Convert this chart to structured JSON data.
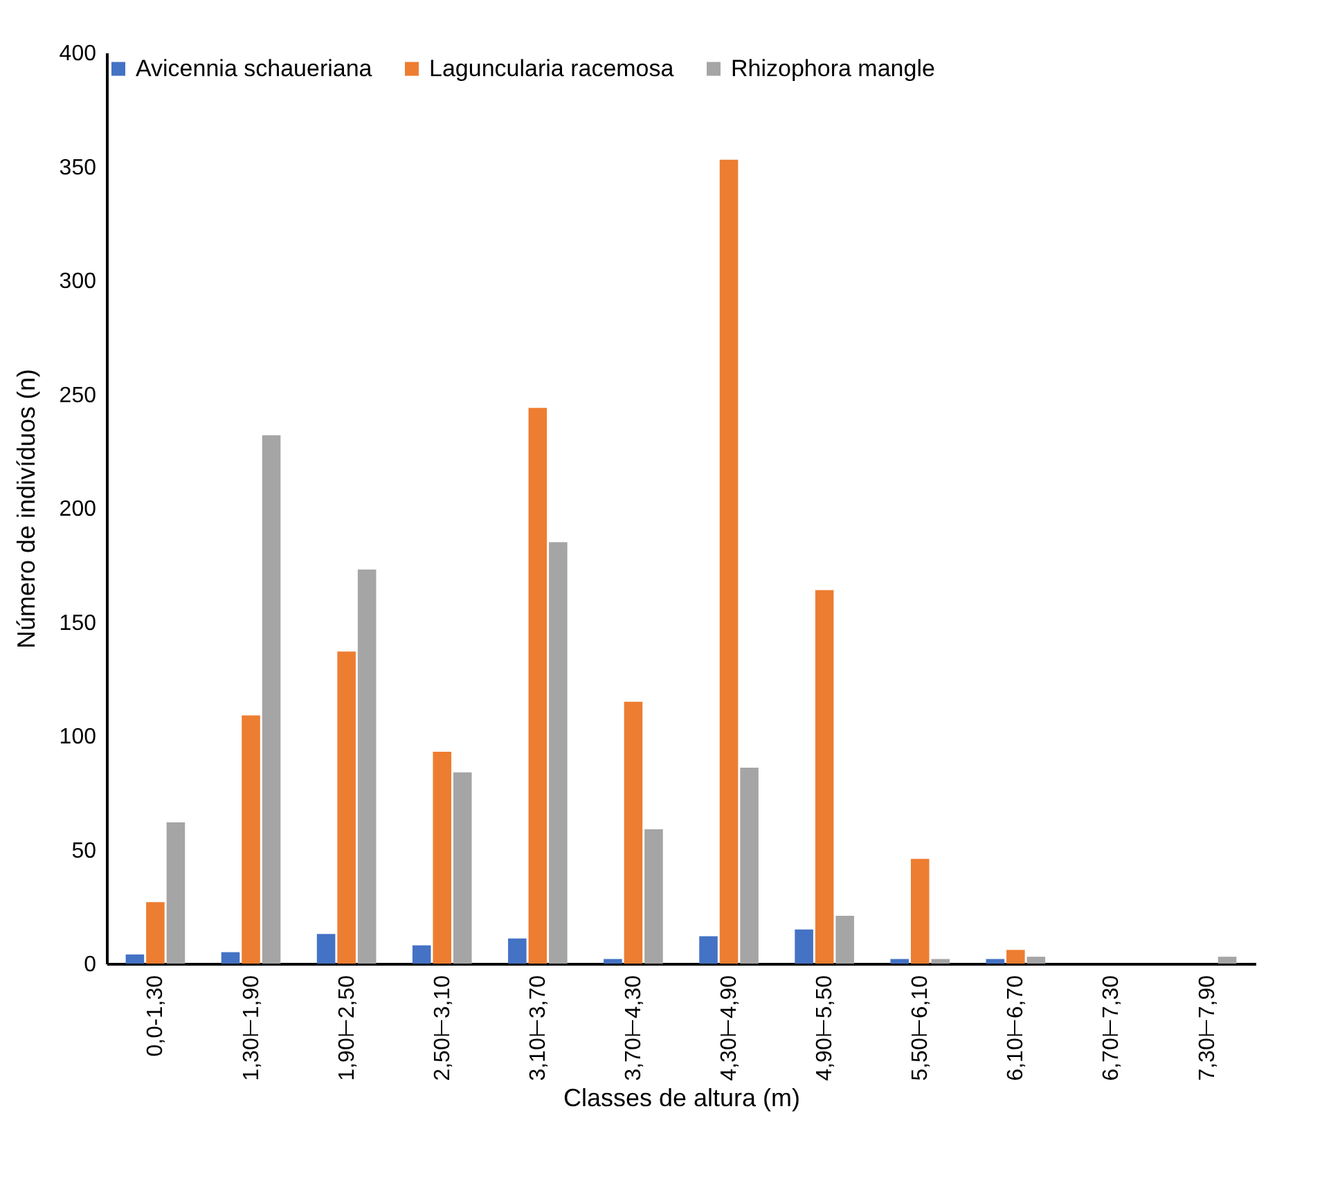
{
  "chart_data": {
    "type": "bar",
    "xlabel": "Classes de altura (m)",
    "ylabel": "Número de indivíduos (n)",
    "categories": [
      "0,0-1,30",
      "1,30⊢1,90",
      "1,90⊢2,50",
      "2,50⊢3,10",
      "3,10⊢3,70",
      "3,70⊢4,30",
      "4,30⊢4,90",
      "4,90⊢5,50",
      "5,50⊢6,10",
      "6,10⊢6,70",
      "6,70⊢7,30",
      "7,30⊢7,90"
    ],
    "series": [
      {
        "name": "Avicennia schaueriana",
        "color": "#4472c4",
        "values": [
          4,
          5,
          13,
          8,
          11,
          2,
          12,
          15,
          2,
          2,
          0,
          0
        ]
      },
      {
        "name": "Laguncularia racemosa",
        "color": "#ed7d31",
        "values": [
          27,
          109,
          137,
          93,
          244,
          115,
          353,
          164,
          46,
          6,
          0,
          0
        ]
      },
      {
        "name": "Rhizophora mangle",
        "color": "#a5a5a5",
        "values": [
          62,
          232,
          173,
          84,
          185,
          59,
          86,
          21,
          2,
          3,
          0,
          3
        ]
      }
    ],
    "ylim": [
      0,
      400
    ],
    "yticks": [
      0,
      50,
      100,
      150,
      200,
      250,
      300,
      350,
      400
    ],
    "grid": false,
    "legend": "top"
  }
}
